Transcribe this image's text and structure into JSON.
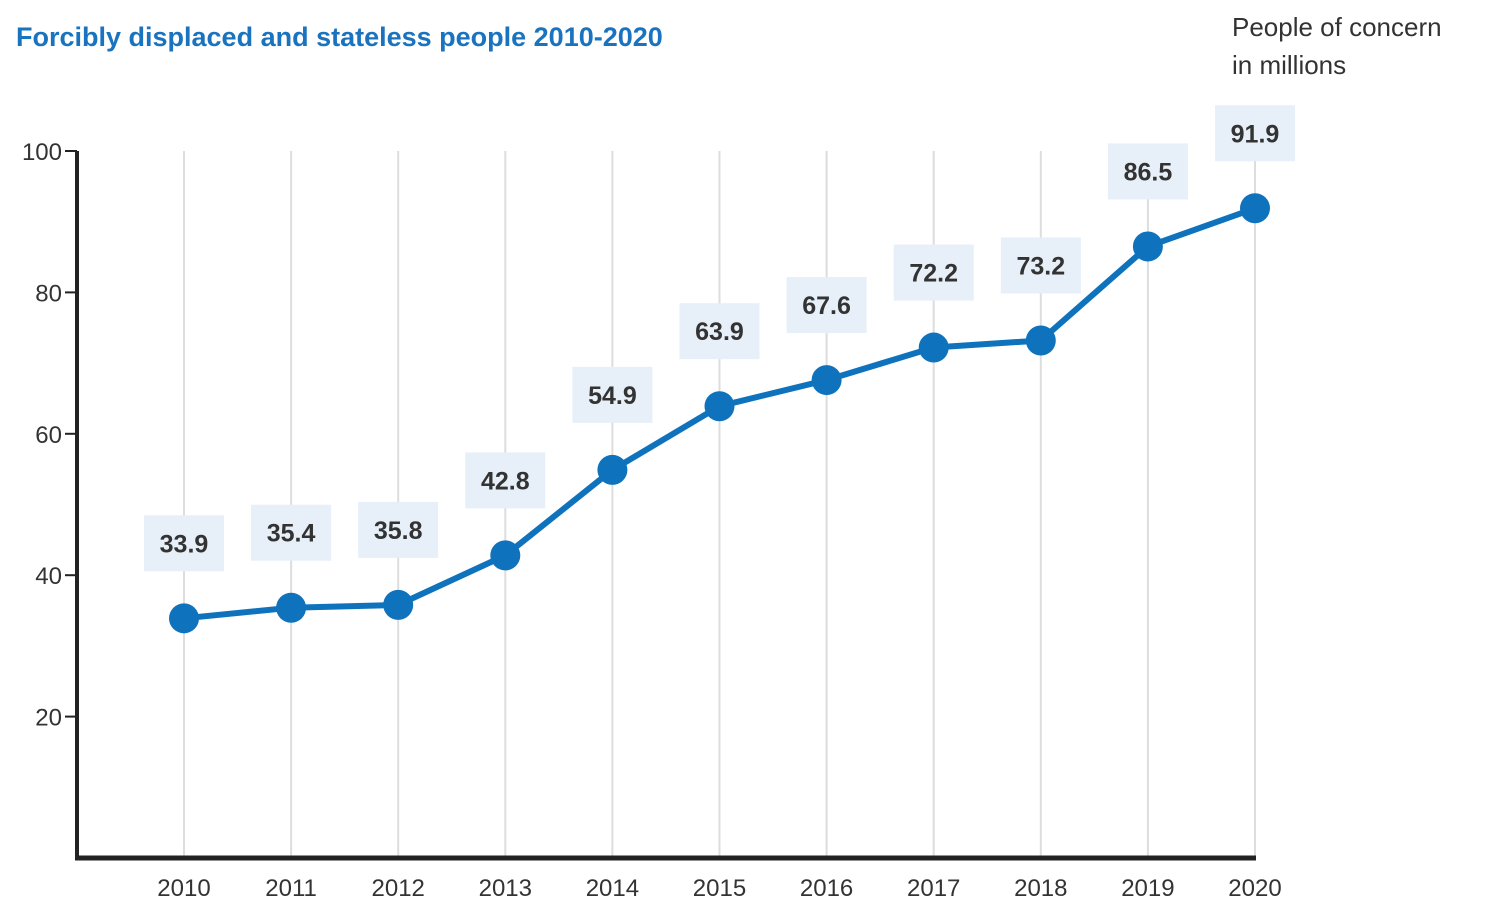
{
  "title": "Forcibly displaced and stateless people 2010-2020",
  "unit_label": {
    "line1": "People of concern",
    "line2": "in millions"
  },
  "colors": {
    "title": "#1a73bf",
    "series": "#0f72bd",
    "label_box": "#e7eff8",
    "axis": "#222222",
    "grid": "#dddddd",
    "text": "#333333"
  },
  "chart_data": {
    "type": "line",
    "title": "Forcibly displaced and stateless people 2010-2020",
    "xlabel": "",
    "ylabel": "People of concern in millions",
    "categories": [
      "2010",
      "2011",
      "2012",
      "2013",
      "2014",
      "2015",
      "2016",
      "2017",
      "2018",
      "2019",
      "2020"
    ],
    "values": [
      33.9,
      35.4,
      35.8,
      42.8,
      54.9,
      63.9,
      67.6,
      72.2,
      73.2,
      86.5,
      91.9
    ],
    "data_labels": [
      "33.9",
      "35.4",
      "35.8",
      "42.8",
      "54.9",
      "63.9",
      "67.6",
      "72.2",
      "73.2",
      "86.5",
      "91.9"
    ],
    "y_ticks": [
      20,
      40,
      60,
      80,
      100
    ],
    "y_tick_labels": [
      "20",
      "40",
      "60",
      "80",
      "100"
    ],
    "ylim": [
      0,
      100
    ],
    "grid": "vertical",
    "legend": "none"
  }
}
